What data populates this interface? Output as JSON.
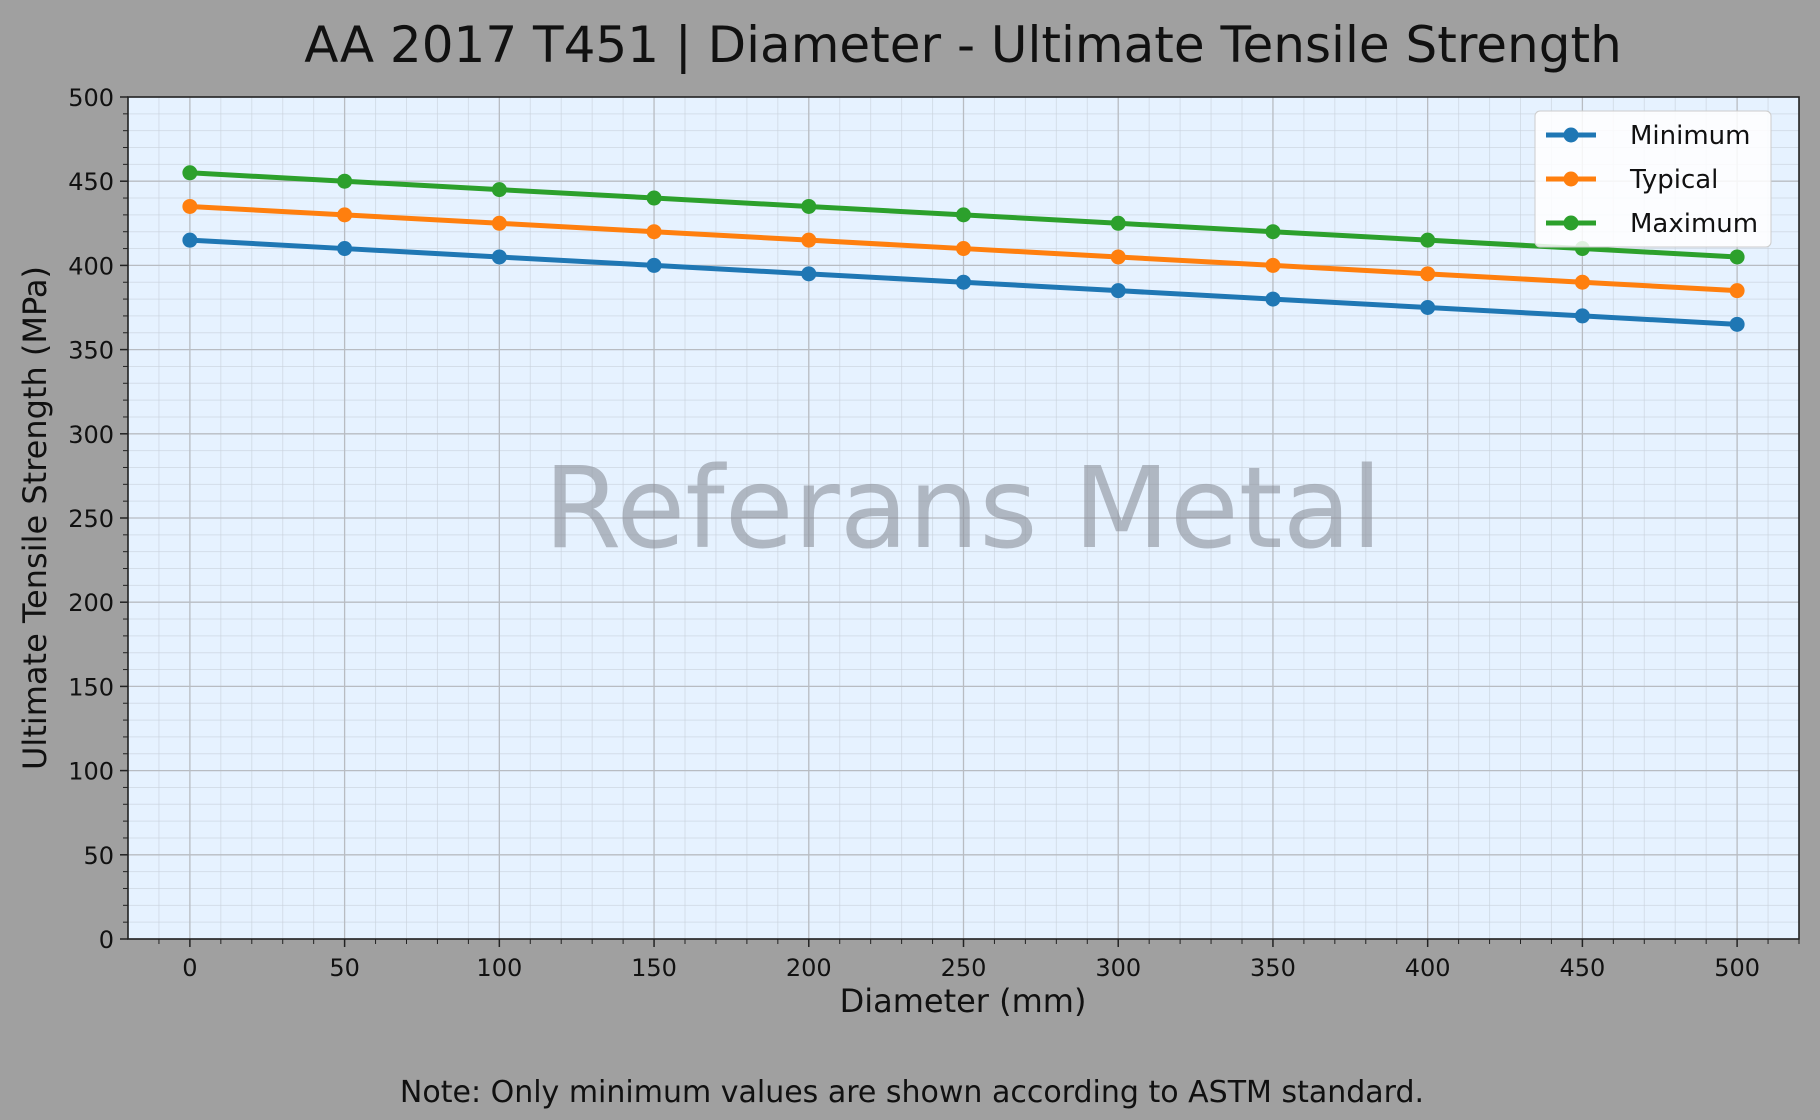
{
  "chart_data": {
    "type": "line",
    "title": "AA 2017 T451 | Diameter - Ultimate Tensile Strength",
    "xlabel": "Diameter (mm)",
    "ylabel": "Ultimate Tensile Strength (MPa)",
    "xlim": [
      -20,
      520
    ],
    "ylim": [
      0,
      500
    ],
    "xticks": [
      0,
      50,
      100,
      150,
      200,
      250,
      300,
      350,
      400,
      450,
      500
    ],
    "yticks": [
      0,
      50,
      100,
      150,
      200,
      250,
      300,
      350,
      400,
      450,
      500
    ],
    "grid": true,
    "minor_grid": true,
    "legend_position": "top-right",
    "x": [
      0,
      50,
      100,
      150,
      200,
      250,
      300,
      350,
      400,
      450,
      500
    ],
    "series": [
      {
        "name": "Minimum",
        "color": "#1f77b4",
        "values": [
          415,
          410,
          405,
          400,
          395,
          390,
          385,
          380,
          375,
          370,
          365
        ]
      },
      {
        "name": "Typical",
        "color": "#ff7f0e",
        "values": [
          435,
          430,
          425,
          420,
          415,
          410,
          405,
          400,
          395,
          390,
          385
        ]
      },
      {
        "name": "Maximum",
        "color": "#2ca02c",
        "values": [
          455,
          450,
          445,
          440,
          435,
          430,
          425,
          420,
          415,
          410,
          405
        ]
      }
    ],
    "watermark": "Referans Metal",
    "note": "Note: Only minimum values are shown according to ASTM standard."
  },
  "colors": {
    "figure_background": "#a0a0a0",
    "plot_background": "#e6f2ff"
  }
}
